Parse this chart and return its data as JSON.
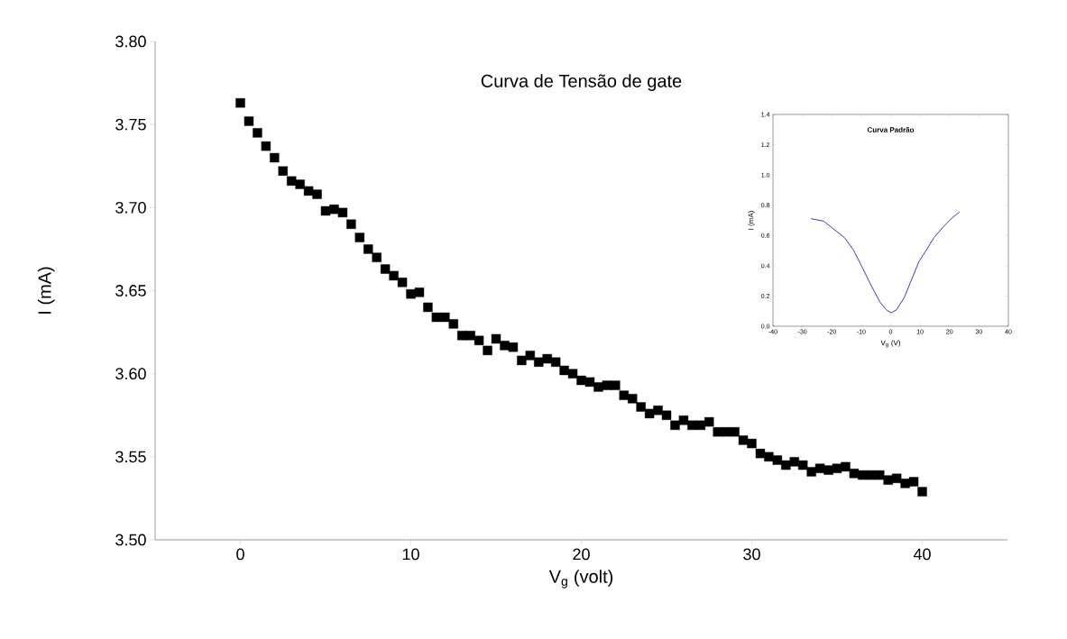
{
  "chart_data": [
    {
      "type": "scatter",
      "title": "Curva de Tensão de gate",
      "xlabel": "V$_{g}$ (volt)",
      "ylabel": "I  (mA)",
      "color": "#000000",
      "marker": "square",
      "xlim": [
        -5,
        45
      ],
      "ylim": [
        3.5,
        3.8
      ],
      "xticks": [
        0,
        10,
        20,
        30,
        40
      ],
      "yticks": [
        {
          "value": 3.5,
          "label": "3.50"
        },
        {
          "value": 3.55,
          "label": "3.55"
        },
        {
          "value": 3.6,
          "label": "3.60"
        },
        {
          "value": 3.65,
          "label": "3.65"
        },
        {
          "value": 3.7,
          "label": "3.70"
        },
        {
          "value": 3.75,
          "label": "3.75"
        },
        {
          "value": 3.8,
          "label": "3.80"
        }
      ],
      "x": [
        0,
        0.5,
        1,
        1.5,
        2,
        2.5,
        3,
        3.5,
        4,
        4.5,
        5,
        5.5,
        6,
        6.5,
        7,
        7.5,
        8,
        8.5,
        9,
        9.5,
        10,
        10.5,
        11,
        11.5,
        12,
        12.5,
        13,
        13.5,
        14,
        14.5,
        15,
        15.5,
        16,
        16.5,
        17,
        17.5,
        18,
        18.5,
        19,
        19.5,
        20,
        20.5,
        21,
        21.5,
        22,
        22.5,
        23,
        23.5,
        24,
        24.5,
        25,
        25.5,
        26,
        26.5,
        27,
        27.5,
        28,
        28.5,
        29,
        29.5,
        30,
        30.5,
        31,
        31.5,
        32,
        32.5,
        33,
        33.5,
        34,
        34.5,
        35,
        35.5,
        36,
        36.5,
        37,
        37.5,
        38,
        38.5,
        39,
        39.5,
        40
      ],
      "values": [
        3.763,
        3.752,
        3.745,
        3.737,
        3.73,
        3.722,
        3.716,
        3.714,
        3.71,
        3.708,
        3.698,
        3.699,
        3.697,
        3.69,
        3.682,
        3.675,
        3.67,
        3.663,
        3.659,
        3.655,
        3.648,
        3.649,
        3.64,
        3.634,
        3.634,
        3.63,
        3.623,
        3.623,
        3.62,
        3.614,
        3.621,
        3.617,
        3.616,
        3.608,
        3.611,
        3.607,
        3.609,
        3.607,
        3.602,
        3.6,
        3.596,
        3.595,
        3.592,
        3.593,
        3.593,
        3.587,
        3.585,
        3.58,
        3.576,
        3.578,
        3.575,
        3.569,
        3.572,
        3.569,
        3.569,
        3.571,
        3.565,
        3.565,
        3.565,
        3.56,
        3.558,
        3.552,
        3.55,
        3.548,
        3.545,
        3.547,
        3.545,
        3.541,
        3.543,
        3.542,
        3.543,
        3.544,
        3.54,
        3.539,
        3.539,
        3.539,
        3.536,
        3.537,
        3.534,
        3.535,
        3.529
      ]
    },
    {
      "type": "line",
      "title": "Curva Padrão",
      "xlabel": "V$_{g}$ (V)",
      "ylabel": "I (mA)",
      "color": "#3a3acc",
      "xlim": [
        -40,
        40
      ],
      "ylim": [
        0,
        1.4
      ],
      "xticks": [
        -40,
        -30,
        -20,
        -10,
        0,
        10,
        20,
        30,
        40
      ],
      "yticks": [
        {
          "value": 0,
          "label": "0.0"
        },
        0.2,
        0.4,
        0.6,
        0.8,
        {
          "value": 1,
          "label": "1.0"
        },
        1.2,
        1.4
      ],
      "x": [
        -27.1,
        -22.8,
        -19.8,
        -15.7,
        -12.7,
        -9.6,
        -6.6,
        -3.6,
        -1.5,
        0.2,
        2.0,
        4.6,
        7.1,
        9.6,
        12.2,
        14.7,
        17.8,
        20.8,
        23.4
      ],
      "values": [
        0.711,
        0.695,
        0.649,
        0.586,
        0.506,
        0.387,
        0.268,
        0.159,
        0.109,
        0.089,
        0.109,
        0.189,
        0.308,
        0.427,
        0.506,
        0.586,
        0.655,
        0.715,
        0.755
      ]
    }
  ]
}
